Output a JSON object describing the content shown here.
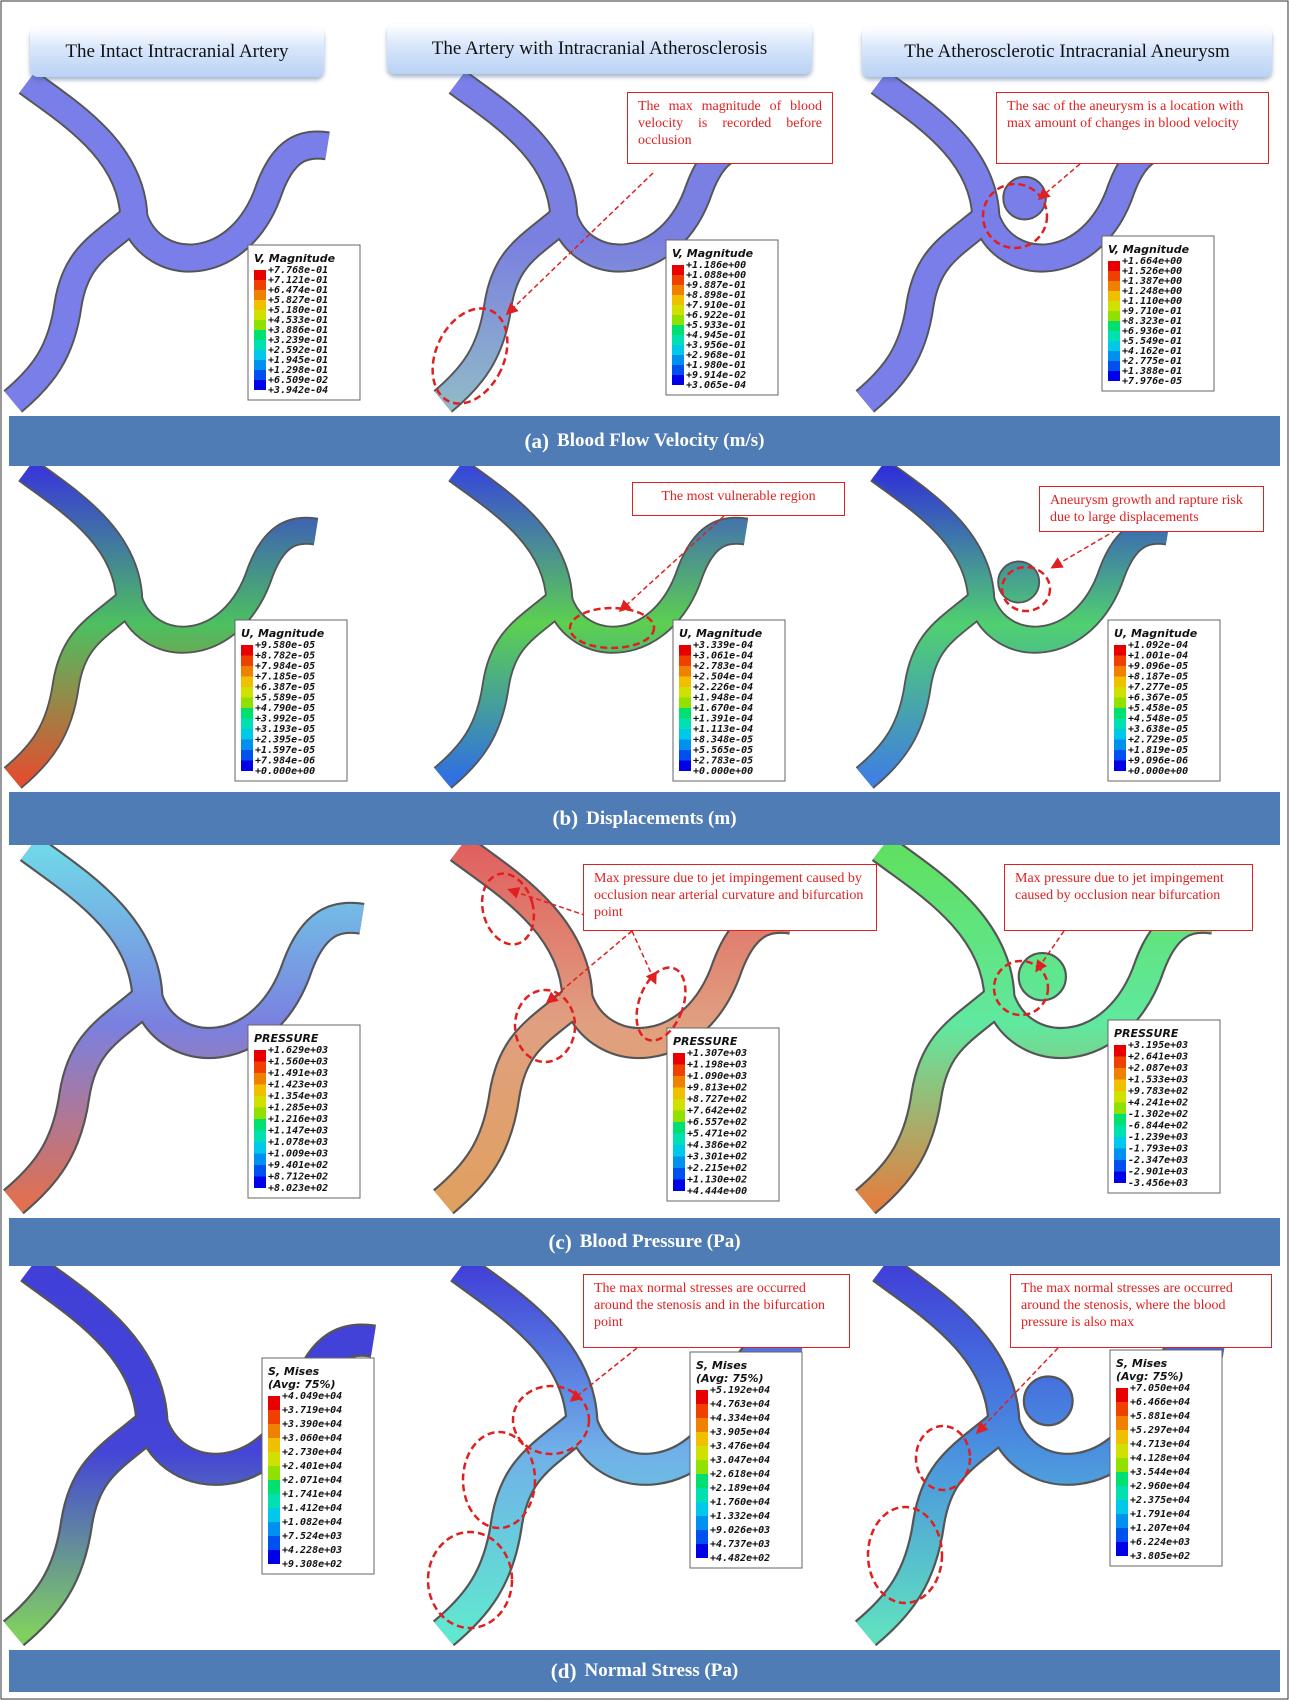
{
  "header": {
    "columns": [
      "The Intact Intracranial Artery",
      "The Artery with Intracranial Atherosclerosis",
      "The Atherosclerotic Intracranial Aneurysm"
    ]
  },
  "panels": [
    {
      "label": "(a)",
      "title": "Blood Flow Velocity (m/s)",
      "cells": [
        {
          "legend": {
            "title": [
              "V, Magnitude"
            ],
            "values": [
              "+7.768e-01",
              "+7.121e-01",
              "+6.474e-01",
              "+5.827e-01",
              "+5.180e-01",
              "+4.533e-01",
              "+3.886e-01",
              "+3.239e-01",
              "+2.592e-01",
              "+1.945e-01",
              "+1.298e-01",
              "+6.509e-02",
              "+3.942e-04"
            ]
          }
        },
        {
          "legend": {
            "title": [
              "V, Magnitude"
            ],
            "values": [
              "+1.186e+00",
              "+1.088e+00",
              "+9.887e-01",
              "+8.898e-01",
              "+7.910e-01",
              "+6.922e-01",
              "+5.933e-01",
              "+4.945e-01",
              "+3.956e-01",
              "+2.968e-01",
              "+1.980e-01",
              "+9.914e-02",
              "+3.065e-04"
            ]
          },
          "note": "The max magnitude of blood velocity is recorded before occlusion"
        },
        {
          "legend": {
            "title": [
              "V, Magnitude"
            ],
            "values": [
              "+1.664e+00",
              "+1.526e+00",
              "+1.387e+00",
              "+1.248e+00",
              "+1.110e+00",
              "+9.710e-01",
              "+8.323e-01",
              "+6.936e-01",
              "+5.549e-01",
              "+4.162e-01",
              "+2.775e-01",
              "+1.388e-01",
              "+7.976e-05"
            ]
          },
          "note": "The sac of the aneurysm is a location with max amount of changes in blood velocity"
        }
      ]
    },
    {
      "label": "(b)",
      "title": "Displacements (m)",
      "cells": [
        {
          "legend": {
            "title": [
              "U, Magnitude"
            ],
            "values": [
              "+9.580e-05",
              "+8.782e-05",
              "+7.984e-05",
              "+7.185e-05",
              "+6.387e-05",
              "+5.589e-05",
              "+4.790e-05",
              "+3.992e-05",
              "+3.193e-05",
              "+2.395e-05",
              "+1.597e-05",
              "+7.984e-06",
              "+0.000e+00"
            ]
          }
        },
        {
          "legend": {
            "title": [
              "U, Magnitude"
            ],
            "values": [
              "+3.339e-04",
              "+3.061e-04",
              "+2.783e-04",
              "+2.504e-04",
              "+2.226e-04",
              "+1.948e-04",
              "+1.670e-04",
              "+1.391e-04",
              "+1.113e-04",
              "+8.348e-05",
              "+5.565e-05",
              "+2.783e-05",
              "+0.000e+00"
            ]
          },
          "note": "The most vulnerable region"
        },
        {
          "legend": {
            "title": [
              "U, Magnitude"
            ],
            "values": [
              "+1.092e-04",
              "+1.001e-04",
              "+9.096e-05",
              "+8.187e-05",
              "+7.277e-05",
              "+6.367e-05",
              "+5.458e-05",
              "+4.548e-05",
              "+3.638e-05",
              "+2.729e-05",
              "+1.819e-05",
              "+9.096e-06",
              "+0.000e+00"
            ]
          },
          "note": "Aneurysm growth and rapture risk due to large displacements"
        }
      ]
    },
    {
      "label": "(c)",
      "title": "Blood Pressure (Pa)",
      "cells": [
        {
          "legend": {
            "title": [
              "PRESSURE"
            ],
            "values": [
              "+1.629e+03",
              "+1.560e+03",
              "+1.491e+03",
              "+1.423e+03",
              "+1.354e+03",
              "+1.285e+03",
              "+1.216e+03",
              "+1.147e+03",
              "+1.078e+03",
              "+1.009e+03",
              "+9.401e+02",
              "+8.712e+02",
              "+8.023e+02"
            ]
          }
        },
        {
          "legend": {
            "title": [
              "PRESSURE"
            ],
            "values": [
              "+1.307e+03",
              "+1.198e+03",
              "+1.090e+03",
              "+9.813e+02",
              "+8.727e+02",
              "+7.642e+02",
              "+6.557e+02",
              "+5.471e+02",
              "+4.386e+02",
              "+3.301e+02",
              "+2.215e+02",
              "+1.130e+02",
              "+4.444e+00"
            ]
          },
          "note": "Max pressure due to jet impingement caused by occlusion near arterial curvature and bifurcation point"
        },
        {
          "legend": {
            "title": [
              "PRESSURE"
            ],
            "values": [
              "+3.195e+03",
              "+2.641e+03",
              "+2.087e+03",
              "+1.533e+03",
              "+9.783e+02",
              "+4.241e+02",
              "-1.302e+02",
              "-6.844e+02",
              "-1.239e+03",
              "-1.793e+03",
              "-2.347e+03",
              "-2.901e+03",
              "-3.456e+03"
            ]
          },
          "note": "Max pressure due to jet impingement caused by occlusion near bifurcation"
        }
      ]
    },
    {
      "label": "(d)",
      "title": "Normal Stress (Pa)",
      "cells": [
        {
          "legend": {
            "title": [
              "S, Mises",
              "(Avg: 75%)"
            ],
            "values": [
              "+4.049e+04",
              "+3.719e+04",
              "+3.390e+04",
              "+3.060e+04",
              "+2.730e+04",
              "+2.401e+04",
              "+2.071e+04",
              "+1.741e+04",
              "+1.412e+04",
              "+1.082e+04",
              "+7.524e+03",
              "+4.228e+03",
              "+9.308e+02"
            ]
          }
        },
        {
          "legend": {
            "title": [
              "S, Mises",
              "(Avg: 75%)"
            ],
            "values": [
              "+5.192e+04",
              "+4.763e+04",
              "+4.334e+04",
              "+3.905e+04",
              "+3.476e+04",
              "+3.047e+04",
              "+2.618e+04",
              "+2.189e+04",
              "+1.760e+04",
              "+1.332e+04",
              "+9.026e+03",
              "+4.737e+03",
              "+4.482e+02"
            ]
          },
          "note": "The max normal stresses are occurred around the stenosis and in the bifurcation point"
        },
        {
          "legend": {
            "title": [
              "S, Mises",
              "(Avg: 75%)"
            ],
            "values": [
              "+7.050e+04",
              "+6.466e+04",
              "+5.881e+04",
              "+5.297e+04",
              "+4.713e+04",
              "+4.128e+04",
              "+3.544e+04",
              "+2.960e+04",
              "+2.375e+04",
              "+1.791e+04",
              "+1.207e+04",
              "+6.224e+03",
              "+3.805e+02"
            ]
          },
          "note": "The max normal stresses are occurred around the stenosis, where the blood pressure is also max"
        }
      ]
    }
  ]
}
